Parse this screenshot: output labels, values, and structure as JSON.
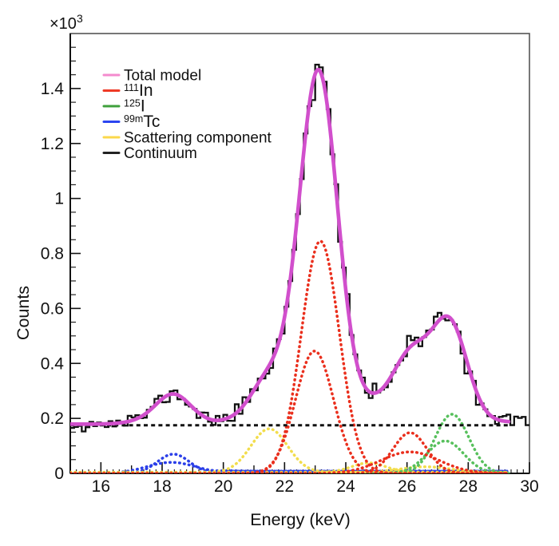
{
  "figure": {
    "description": "Energy spectrum histogram with fitted model components",
    "background": "#ffffff"
  },
  "axes": {
    "x": {
      "label": "Energy (keV)",
      "min": 15,
      "max": 30,
      "labeled_ticks": [
        16,
        18,
        20,
        22,
        24,
        26,
        28,
        30
      ],
      "medium_ticks": [
        17,
        19,
        21,
        23,
        25,
        27,
        29
      ],
      "minor_tick_step": 0.2
    },
    "y": {
      "label": "Counts",
      "scale_base": "×10",
      "scale_exp": "3",
      "min": 0,
      "max": 1600,
      "labeled_ticks": [
        {
          "v": 0,
          "t": "0"
        },
        {
          "v": 200,
          "t": "0.2"
        },
        {
          "v": 400,
          "t": "0.4"
        },
        {
          "v": 600,
          "t": "0.6"
        },
        {
          "v": 800,
          "t": "0.8"
        },
        {
          "v": 1000,
          "t": "1"
        },
        {
          "v": 1200,
          "t": "1.2"
        },
        {
          "v": 1400,
          "t": "1.4"
        }
      ],
      "minor_tick_step": 50
    }
  },
  "legend": {
    "items": [
      {
        "key": "total",
        "sup": "",
        "label": "Total model",
        "color": "#f48bce"
      },
      {
        "key": "in111",
        "sup": "111",
        "label": "In",
        "color": "#ee3a26"
      },
      {
        "key": "i125",
        "sup": "125",
        "label": "I",
        "color": "#3fa03c"
      },
      {
        "key": "tc99m",
        "sup": "99m",
        "label": "Tc",
        "color": "#2b45f0"
      },
      {
        "key": "scatter",
        "sup": "",
        "label": "Scattering component",
        "color": "#fbd84b"
      },
      {
        "key": "continuum",
        "sup": "",
        "label": "Continuum",
        "color": "#222222"
      }
    ]
  },
  "chart_data": {
    "type": "line",
    "title": "",
    "xlabel": "Energy (keV)",
    "ylabel": "Counts",
    "x_range": [
      15,
      30
    ],
    "ylim": [
      0,
      1600
    ],
    "y_units": "counts (axis labels in units of 10^3)",
    "grid": false,
    "legend_position": "top-left-inside",
    "fit_range": [
      15,
      29.35
    ],
    "continuum_level": 175,
    "series": [
      {
        "name": "99mTc",
        "color": "#2b3fe8",
        "style": "dots",
        "gaussians": [
          {
            "center": 18.37,
            "amplitude": 70,
            "sigma": 0.52
          },
          {
            "center": 18.3,
            "amplitude": 40,
            "sigma": 0.8
          }
        ],
        "shelf": {
          "amplitude": 8,
          "onset": 19.9
        }
      },
      {
        "name": "Scattering component",
        "color": "#f2dd4c",
        "style": "dots",
        "gaussians": [
          {
            "center": 21.5,
            "amplitude": 158,
            "sigma": 0.6
          },
          {
            "center": 24.75,
            "amplitude": 34,
            "sigma": 0.55
          },
          {
            "center": 26.6,
            "amplitude": 20,
            "sigma": 0.8
          }
        ],
        "baseline": 4
      },
      {
        "name": "125I",
        "color": "#57c05c",
        "style": "dots",
        "gaussians": [
          {
            "center": 27.47,
            "amplitude": 215,
            "sigma": 0.55
          },
          {
            "center": 27.25,
            "amplitude": 118,
            "sigma": 0.6
          }
        ]
      },
      {
        "name": "111In",
        "color": "#ea2f1d",
        "style": "dots",
        "gaussians": [
          {
            "center": 23.17,
            "amplitude": 845,
            "sigma": 0.62
          },
          {
            "center": 22.98,
            "amplitude": 445,
            "sigma": 0.62
          },
          {
            "center": 26.1,
            "amplitude": 148,
            "sigma": 0.55
          },
          {
            "center": 26.1,
            "amplitude": 78,
            "sigma": 0.95
          }
        ]
      },
      {
        "name": "Continuum",
        "color": "#111111",
        "style": "dash",
        "role": "continuum"
      },
      {
        "name": "Total model",
        "color": "#d14fcc",
        "style": "solid",
        "role": "total"
      }
    ],
    "histogram": {
      "name": "data histogram",
      "color": "#111111",
      "bin_width": 0.125,
      "x_min": 15,
      "x_max": 30,
      "noise_seed": 11,
      "noise_scale": 0.9,
      "features": {
        "baseline": 175,
        "low_peak": {
          "x": 18.4,
          "y": 285
        },
        "dip": {
          "x": 20.3,
          "y": 205
        },
        "main_peak": {
          "x": 23.15,
          "y": 1505
        },
        "valley": {
          "x": 25.2,
          "y": 300
        },
        "second_peak": {
          "x": 27.4,
          "y": 585
        },
        "right_tail": 190
      }
    }
  }
}
